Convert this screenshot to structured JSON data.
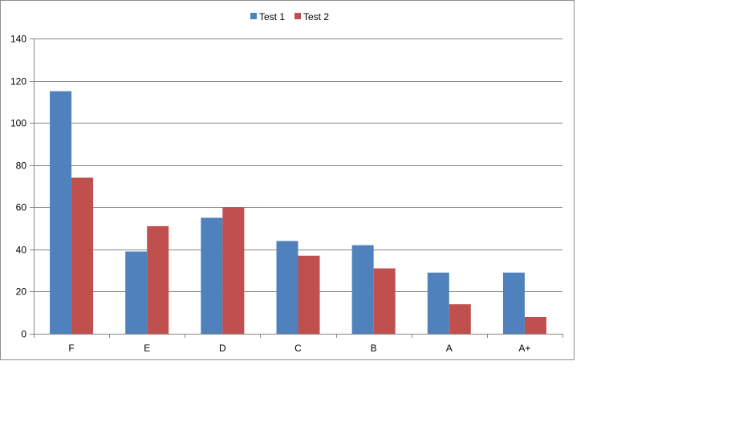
{
  "chart_data": {
    "type": "bar",
    "categories": [
      "F",
      "E",
      "D",
      "C",
      "B",
      "A",
      "A+"
    ],
    "series": [
      {
        "name": "Test 1",
        "values": [
          115,
          39,
          55,
          44,
          42,
          29,
          29
        ],
        "color": "#4f81bd"
      },
      {
        "name": "Test 2",
        "values": [
          74,
          51,
          60,
          37,
          31,
          14,
          8
        ],
        "color": "#c0504d"
      }
    ],
    "ylim": [
      0,
      140
    ],
    "yticks": [
      0,
      20,
      40,
      60,
      80,
      100,
      120,
      140
    ],
    "grid": true,
    "legend": "top-center",
    "colors": {
      "grid": "#868686",
      "axis": "#868686",
      "border": "#8e8e8e"
    }
  }
}
